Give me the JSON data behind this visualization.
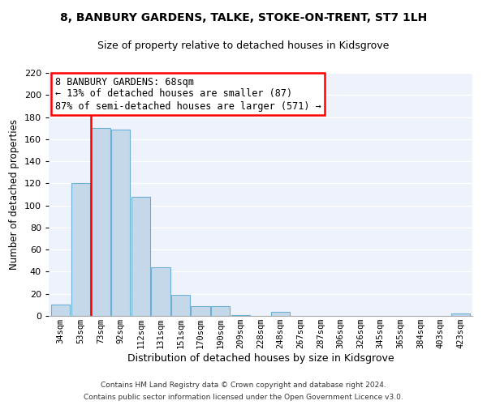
{
  "title1": "8, BANBURY GARDENS, TALKE, STOKE-ON-TRENT, ST7 1LH",
  "title2": "Size of property relative to detached houses in Kidsgrove",
  "xlabel": "Distribution of detached houses by size in Kidsgrove",
  "ylabel": "Number of detached properties",
  "categories": [
    "34sqm",
    "53sqm",
    "73sqm",
    "92sqm",
    "112sqm",
    "131sqm",
    "151sqm",
    "170sqm",
    "190sqm",
    "209sqm",
    "228sqm",
    "248sqm",
    "267sqm",
    "287sqm",
    "306sqm",
    "326sqm",
    "345sqm",
    "365sqm",
    "384sqm",
    "403sqm",
    "423sqm"
  ],
  "values": [
    10,
    120,
    170,
    169,
    108,
    44,
    19,
    9,
    9,
    1,
    0,
    4,
    0,
    0,
    0,
    0,
    0,
    0,
    0,
    0,
    2
  ],
  "bar_color": "#c5d8ea",
  "bar_edge_color": "#6aafd6",
  "reference_line_color": "red",
  "reference_line_x": 1.5,
  "ylim": [
    0,
    220
  ],
  "yticks": [
    0,
    20,
    40,
    60,
    80,
    100,
    120,
    140,
    160,
    180,
    200,
    220
  ],
  "annotation_title": "8 BANBURY GARDENS: 68sqm",
  "annotation_line1": "← 13% of detached houses are smaller (87)",
  "annotation_line2": "87% of semi-detached houses are larger (571) →",
  "footnote1": "Contains HM Land Registry data © Crown copyright and database right 2024.",
  "footnote2": "Contains public sector information licensed under the Open Government Licence v3.0.",
  "bg_color": "#eef2fa",
  "grid_color": "white",
  "title_fontsize": 10,
  "subtitle_fontsize": 9,
  "ylabel_fontsize": 8.5,
  "xlabel_fontsize": 9,
  "tick_fontsize": 7.5,
  "annotation_fontsize": 8.5,
  "footnote_fontsize": 6.5
}
